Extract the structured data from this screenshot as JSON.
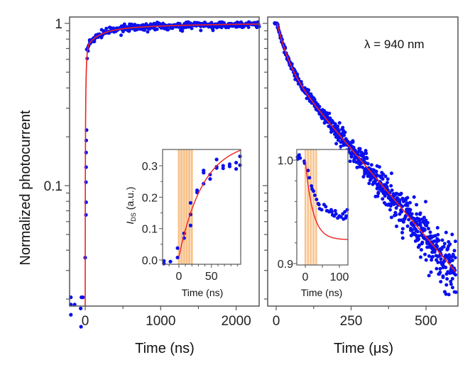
{
  "colors": {
    "data_points": "#0a10ee",
    "fit_line": "#ee2222",
    "pulse_bars": "#f8b878",
    "axes": "#555555",
    "text": "#222222"
  },
  "chart_data": [
    {
      "id": "left-main",
      "type": "scatter",
      "title": "",
      "xlabel": "Time (ns)",
      "ylabel": "Normalized photocurrent",
      "xscale": "linear",
      "yscale": "log",
      "xlim": [
        -200,
        2300
      ],
      "ylim": [
        0.013,
        1.03
      ],
      "xticks": [
        0,
        1000,
        2000
      ],
      "xtick_labels": [
        "0",
        "1000",
        "2000"
      ],
      "yticks": [
        0.1,
        1
      ],
      "ytick_labels": [
        "0.1",
        "1"
      ],
      "grid": false,
      "series": [
        {
          "name": "data",
          "kind": "scatter",
          "points_pre_zero": [
            [
              -190,
              0.0205
            ],
            [
              -190,
              0.0185
            ],
            [
              -140,
              0.0185
            ],
            [
              -60,
              0.0175
            ],
            [
              -50,
              0.0205
            ],
            [
              -30,
              0.0205
            ],
            [
              -190,
              0.016
            ],
            [
              -55,
              0.0135
            ]
          ],
          "points_rise": [
            [
              0,
              0.036
            ],
            [
              10,
              0.066
            ],
            [
              12,
              0.079
            ],
            [
              10,
              0.105
            ],
            [
              12,
              0.13
            ],
            [
              12,
              0.16
            ],
            [
              14,
              0.19
            ],
            [
              18,
              0.22
            ]
          ],
          "rise_model": "y = 1 - 0.62*exp(-t/90) - 0.38*exp(-t/650) after t=0; noise amplitude ~3%"
        },
        {
          "name": "fit",
          "kind": "line",
          "model": "bi-exponential rise from 0 at t=0 to 1 at t=2300 ns"
        }
      ],
      "inset": {
        "id": "left-inset",
        "type": "scatter",
        "xlabel": "Time (ns)",
        "ylabel": "I_DS (a.u.)",
        "ylabel_main": "I",
        "ylabel_sub": "DS",
        "ylabel_rest": " (a.u.)",
        "xlim": [
          -25,
          95
        ],
        "ylim": [
          -0.02,
          0.35
        ],
        "xticks": [
          0,
          50
        ],
        "xtick_labels": [
          "0",
          "50"
        ],
        "yticks": [
          0.0,
          0.1,
          0.2,
          0.3
        ],
        "ytick_labels": [
          "0.0",
          "0.1",
          "0.2",
          "0.3"
        ],
        "pulse_bars_ns": [
          0,
          4,
          8,
          12,
          16,
          20
        ],
        "points": [
          [
            -23,
            -0.003
          ],
          [
            -23,
            -0.013
          ],
          [
            -13,
            -0.005
          ],
          [
            -2,
            0.038
          ],
          [
            -2,
            0.008
          ],
          [
            8,
            0.085
          ],
          [
            8,
            0.07
          ],
          [
            18,
            0.182
          ],
          [
            18,
            0.145
          ],
          [
            18,
            0.11
          ],
          [
            28,
            0.222
          ],
          [
            28,
            0.215
          ],
          [
            38,
            0.285
          ],
          [
            38,
            0.278
          ],
          [
            38,
            0.243
          ],
          [
            48,
            0.272
          ],
          [
            48,
            0.258
          ],
          [
            58,
            0.32
          ],
          [
            58,
            0.297
          ],
          [
            58,
            0.293
          ],
          [
            68,
            0.3
          ],
          [
            68,
            0.292
          ],
          [
            78,
            0.305
          ],
          [
            78,
            0.298
          ],
          [
            88,
            0.31
          ],
          [
            88,
            0.29
          ],
          [
            95,
            0.33
          ],
          [
            95,
            0.302
          ]
        ],
        "fit": "y = 0.37*(1-exp(-t/38)) for t>=0"
      }
    },
    {
      "id": "right-main",
      "type": "scatter",
      "title": "",
      "annotation": "λ = 940 nm",
      "xlabel": "Time (μs)",
      "xlabel_prefix": "Time (",
      "xlabel_unit": "μs",
      "xlabel_suffix": ")",
      "ylabel": "Normalized photocurrent",
      "xscale": "linear",
      "yscale": "log",
      "xlim": [
        -5,
        600
      ],
      "ylim": [
        0.013,
        1.03
      ],
      "xticks": [
        0,
        250,
        500
      ],
      "xtick_labels": [
        "0",
        "250",
        "500"
      ],
      "grid": false,
      "series": [
        {
          "name": "data",
          "kind": "scatter",
          "model": "flat at 1.0 for t<=3 µs, then y = 0.55*exp(-t/40) + 0.45*exp(-t/210); log-noise grows from ~2% to ~25% at 600 µs"
        },
        {
          "name": "fit",
          "kind": "line",
          "model": "same bi-exponential decay, ends near 0.033 at 600 µs"
        }
      ],
      "inset": {
        "id": "right-inset",
        "type": "scatter",
        "xlabel": "Time (ns)",
        "xlim": [
          -25,
          125
        ],
        "ylim": [
          0.899,
          1.007
        ],
        "xticks": [
          0,
          100
        ],
        "xtick_labels": [
          "0",
          "100"
        ],
        "yticks": [
          0.9,
          1.0
        ],
        "ytick_labels": [
          "0.9",
          "1.0"
        ],
        "pulse_bars_ns": [
          0,
          8,
          16,
          24,
          32
        ],
        "points": [
          [
            -25,
            1.003
          ],
          [
            -22,
            1.001
          ],
          [
            -18,
            1.005
          ],
          [
            -15,
            1.002
          ],
          [
            -3,
            0.999
          ],
          [
            -2,
            0.997
          ],
          [
            8,
            0.99
          ],
          [
            12,
            0.983
          ],
          [
            18,
            0.975
          ],
          [
            20,
            0.972
          ],
          [
            24,
            0.97
          ],
          [
            28,
            0.966
          ],
          [
            33,
            0.962
          ],
          [
            38,
            0.958
          ],
          [
            40,
            0.957
          ],
          [
            42,
            0.953
          ],
          [
            48,
            0.952
          ],
          [
            55,
            0.957
          ],
          [
            60,
            0.955
          ],
          [
            63,
            0.951
          ],
          [
            65,
            0.951
          ],
          [
            70,
            0.95
          ],
          [
            76,
            0.952
          ],
          [
            78,
            0.95
          ],
          [
            80,
            0.947
          ],
          [
            85,
            0.946
          ],
          [
            88,
            0.951
          ],
          [
            90,
            0.948
          ],
          [
            95,
            0.944
          ],
          [
            100,
            0.946
          ],
          [
            105,
            0.945
          ],
          [
            110,
            0.948
          ],
          [
            112,
            0.943
          ],
          [
            116,
            0.95
          ],
          [
            118,
            0.944
          ],
          [
            120,
            0.946
          ],
          [
            123,
            0.952
          ]
        ],
        "fit": "y = 0.923 + 0.078*exp(-t/22) for t>=0"
      }
    }
  ]
}
